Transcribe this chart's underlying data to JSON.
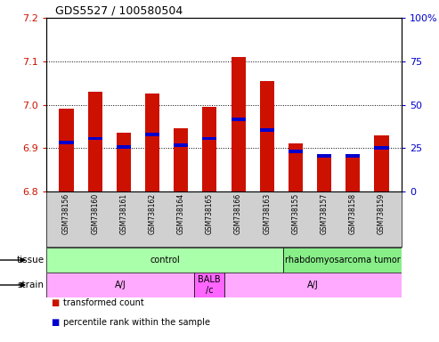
{
  "title": "GDS5527 / 100580504",
  "samples": [
    "GSM738156",
    "GSM738160",
    "GSM738161",
    "GSM738162",
    "GSM738164",
    "GSM738165",
    "GSM738166",
    "GSM738163",
    "GSM738155",
    "GSM738157",
    "GSM738158",
    "GSM738159"
  ],
  "transformed_count": [
    6.99,
    7.03,
    6.935,
    7.025,
    6.945,
    6.995,
    7.11,
    7.055,
    6.91,
    6.885,
    6.885,
    6.93
  ],
  "percentile_bottom": [
    6.908,
    6.918,
    6.898,
    6.928,
    6.902,
    6.918,
    6.963,
    6.938,
    6.888,
    6.878,
    6.878,
    6.897
  ],
  "percentile_top": [
    6.916,
    6.926,
    6.906,
    6.936,
    6.91,
    6.926,
    6.971,
    6.946,
    6.896,
    6.886,
    6.886,
    6.905
  ],
  "ylim": [
    6.8,
    7.2
  ],
  "yticks": [
    6.8,
    6.9,
    7.0,
    7.1,
    7.2
  ],
  "y2ticks_pct": [
    0,
    25,
    50,
    75,
    100
  ],
  "bar_color": "#cc1100",
  "percentile_color": "#0000cc",
  "bg_color": "#d0d0d0",
  "plot_bg": "#ffffff",
  "tissue_groups": [
    {
      "label": "control",
      "start": 0,
      "end": 8,
      "color": "#aaffaa"
    },
    {
      "label": "rhabdomyosarcoma tumor",
      "start": 8,
      "end": 12,
      "color": "#88ee88"
    }
  ],
  "strain_groups": [
    {
      "label": "A/J",
      "start": 0,
      "end": 5,
      "color": "#ffaaff"
    },
    {
      "label": "BALB\n/c",
      "start": 5,
      "end": 6,
      "color": "#ff66ff"
    },
    {
      "label": "A/J",
      "start": 6,
      "end": 12,
      "color": "#ffaaff"
    }
  ],
  "legend_items": [
    {
      "color": "#cc1100",
      "label": "transformed count"
    },
    {
      "color": "#0000cc",
      "label": "percentile rank within the sample"
    }
  ]
}
